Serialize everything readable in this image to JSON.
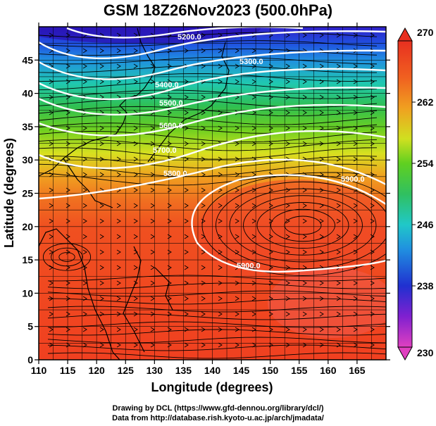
{
  "title": "GSM 18Z26Nov2023 (500.0hPa)",
  "x_axis": {
    "label": "Longitude (degrees)",
    "range": [
      110,
      170
    ],
    "ticks": [
      "110",
      "115",
      "120",
      "125",
      "130",
      "135",
      "140",
      "145",
      "150",
      "155",
      "160",
      "165"
    ]
  },
  "y_axis": {
    "label": "Latitude  (degrees)",
    "range": [
      0,
      50
    ],
    "ticks": [
      "0",
      "5",
      "10",
      "15",
      "20",
      "25",
      "30",
      "35",
      "40",
      "45"
    ]
  },
  "colorbar": {
    "min": 230,
    "max": 270,
    "labels": [
      "230",
      "238",
      "246",
      "254",
      "262",
      "270"
    ],
    "colors": [
      "#e040c0",
      "#8020d0",
      "#2030d0",
      "#2090e0",
      "#20c8c8",
      "#30c060",
      "#60d020",
      "#d0e020",
      "#f0a020",
      "#f06020",
      "#e83020"
    ]
  },
  "contours": [
    {
      "label": "5200.0"
    },
    {
      "label": "5300.0"
    },
    {
      "label": "5400.0"
    },
    {
      "label": "5500.0"
    },
    {
      "label": "5600.0"
    },
    {
      "label": "5700.0"
    },
    {
      "label": "5800.0"
    },
    {
      "label": "5900.0"
    },
    {
      "label": "5900.0"
    }
  ],
  "credits": {
    "line1": "Drawing by DCL (https://www.gfd-dennou.org/library/dcl/)",
    "line2": "Data from http://database.rish.kyoto-u.ac.jp/arch/jmadata/"
  }
}
